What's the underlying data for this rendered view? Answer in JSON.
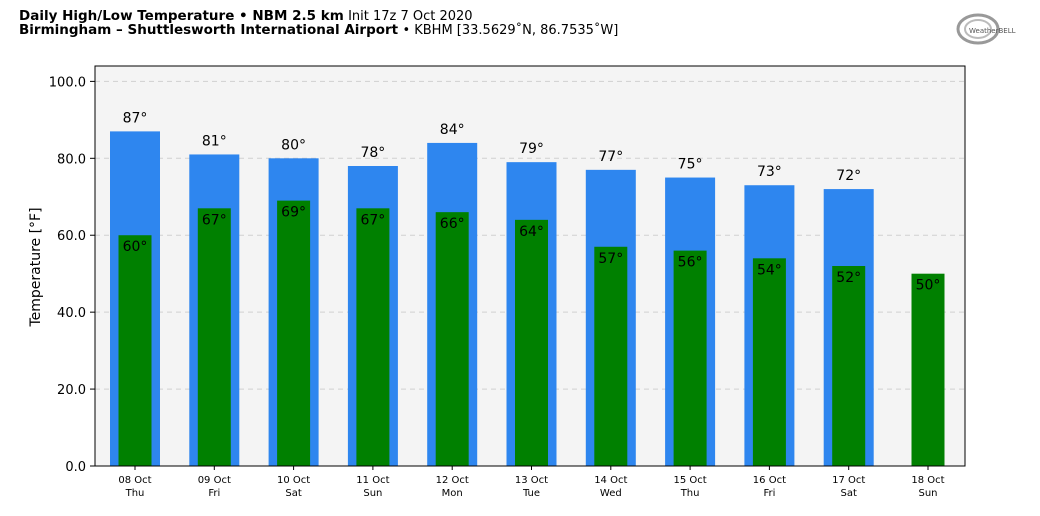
{
  "header": {
    "title_bold": "Daily High/Low Temperature • NBM 2.5 km",
    "init": "Init 17z 7 Oct 2020",
    "station_bold": "Birmingham – Shuttlesworth International Airport",
    "station_info": "• KBHM [33.5629˚N, 86.7535˚W]"
  },
  "logo": {
    "text": "WeatherBELL"
  },
  "chart_data": {
    "type": "bar",
    "title": "Daily High/Low Temperature • NBM 2.5 km",
    "ylabel": "Temperature [°F]",
    "xlabel": "",
    "ylim": [
      0,
      104
    ],
    "yticks": [
      "0.0",
      "20.0",
      "40.0",
      "60.0",
      "80.0",
      "100.0"
    ],
    "ytick_values": [
      0,
      20,
      40,
      60,
      80,
      100
    ],
    "grid": true,
    "categories": [
      {
        "date": "08 Oct",
        "day": "Thu"
      },
      {
        "date": "09 Oct",
        "day": "Fri"
      },
      {
        "date": "10 Oct",
        "day": "Sat"
      },
      {
        "date": "11 Oct",
        "day": "Sun"
      },
      {
        "date": "12 Oct",
        "day": "Mon"
      },
      {
        "date": "13 Oct",
        "day": "Tue"
      },
      {
        "date": "14 Oct",
        "day": "Wed"
      },
      {
        "date": "15 Oct",
        "day": "Thu"
      },
      {
        "date": "16 Oct",
        "day": "Fri"
      },
      {
        "date": "17 Oct",
        "day": "Sat"
      },
      {
        "date": "18 Oct",
        "day": "Sun"
      }
    ],
    "series": [
      {
        "color": "#2e86ef",
        "values": [
          87,
          81,
          80,
          78,
          84,
          79,
          77,
          75,
          73,
          72,
          null
        ],
        "labels": [
          "87°",
          "81°",
          "80°",
          "78°",
          "84°",
          "79°",
          "77°",
          "75°",
          "73°",
          "72°",
          ""
        ]
      },
      {
        "color": "#008000",
        "values": [
          60,
          67,
          69,
          67,
          66,
          64,
          57,
          56,
          54,
          52,
          50
        ],
        "labels": [
          "60°",
          "67°",
          "69°",
          "67°",
          "66°",
          "64°",
          "57°",
          "56°",
          "54°",
          "52°",
          "50°"
        ]
      }
    ],
    "colors": {
      "plot_bg": "#f4f4f4",
      "grid": "#d0d0d0"
    }
  }
}
